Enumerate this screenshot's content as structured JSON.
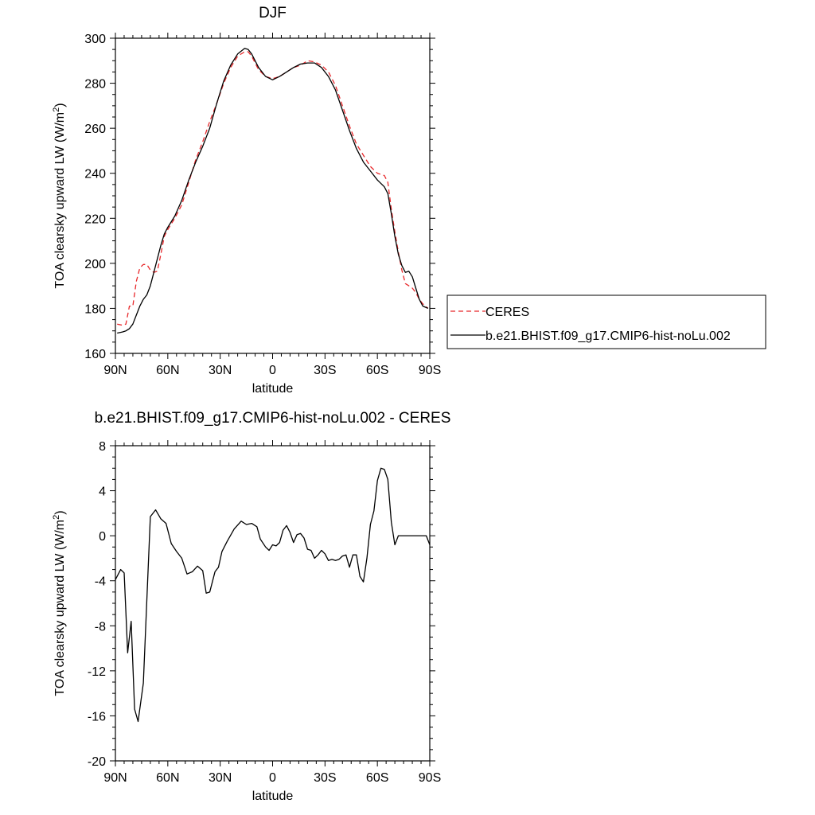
{
  "chart_data": [
    {
      "type": "line",
      "title": "DJF",
      "xlabel": "latitude",
      "ylabel": "TOA clearsky upward LW (W/m",
      "ylabel_sup": "2",
      "ylabel_close": ")",
      "xlim": [
        -90,
        90
      ],
      "ylim": [
        160,
        300
      ],
      "xticks": [
        -90,
        -60,
        -30,
        0,
        30,
        60,
        90
      ],
      "xtick_labels": [
        "90N",
        "60N",
        "30N",
        "0",
        "30S",
        "60S",
        "90S"
      ],
      "yticks": [
        160,
        180,
        200,
        220,
        240,
        260,
        280,
        300
      ],
      "ytick_labels": [
        "160",
        "180",
        "200",
        "220",
        "240",
        "260",
        "280",
        "300"
      ],
      "legend": {
        "placement": "right",
        "entries": [
          {
            "label": "CERES",
            "color": "#e8282b",
            "dash": true
          },
          {
            "label": "b.e21.BHIST.f09_g17.CMIP6-hist-noLu.002",
            "color": "#000000",
            "dash": false
          }
        ]
      },
      "series": [
        {
          "name": "CERES",
          "color": "#e8282b",
          "dash": true,
          "x": [
            -89,
            -86,
            -84,
            -82,
            -80,
            -78,
            -76,
            -74,
            -72,
            -70,
            -68,
            -66,
            -64,
            -62,
            -60,
            -56,
            -52,
            -48,
            -44,
            -40,
            -36,
            -32,
            -28,
            -24,
            -20,
            -16,
            -14,
            -12,
            -8,
            -4,
            0,
            4,
            8,
            12,
            16,
            20,
            24,
            28,
            32,
            36,
            40,
            44,
            48,
            52,
            56,
            60,
            64,
            66,
            68,
            70,
            72,
            74,
            76,
            78,
            80,
            82,
            84,
            86,
            89
          ],
          "y": [
            173,
            172.5,
            173,
            181,
            181,
            192,
            198,
            199.5,
            199.5,
            197,
            196,
            196.5,
            204,
            212,
            215,
            220,
            226,
            236,
            246,
            254,
            263,
            271,
            280,
            287,
            292,
            294,
            294,
            292,
            286,
            283,
            282,
            283,
            285,
            287,
            288,
            290,
            289.5,
            288,
            285,
            279,
            270,
            261,
            253,
            248,
            243,
            240,
            239,
            236,
            224,
            214,
            205,
            197,
            191,
            190,
            189,
            187,
            184,
            182,
            180
          ]
        },
        {
          "name": "b.e21.BHIST.f09_g17.CMIP6-hist-noLu.002",
          "color": "#000000",
          "dash": false,
          "x": [
            -89,
            -86,
            -84,
            -82,
            -80,
            -78,
            -76,
            -74,
            -72,
            -70,
            -68,
            -66,
            -64,
            -62,
            -60,
            -56,
            -52,
            -48,
            -44,
            -40,
            -36,
            -32,
            -28,
            -24,
            -20,
            -16,
            -14,
            -12,
            -8,
            -4,
            0,
            4,
            8,
            12,
            16,
            20,
            24,
            28,
            32,
            36,
            40,
            44,
            48,
            52,
            56,
            60,
            64,
            66,
            68,
            70,
            72,
            74,
            76,
            78,
            80,
            82,
            84,
            86,
            89
          ],
          "y": [
            169,
            169.5,
            170,
            171,
            173,
            177,
            181,
            184,
            186,
            190,
            196,
            202,
            208,
            213,
            216,
            221,
            228,
            237,
            245,
            252,
            260,
            271,
            281,
            288,
            293,
            295.5,
            295,
            293,
            287,
            283,
            281.5,
            283,
            285,
            287,
            288.5,
            289,
            289,
            287,
            283,
            277,
            268,
            259,
            251,
            245,
            241,
            237,
            234,
            231,
            222,
            212,
            204,
            199,
            196,
            196.5,
            194,
            189,
            184,
            181,
            180
          ]
        }
      ]
    },
    {
      "type": "line",
      "title": "b.e21.BHIST.f09_g17.CMIP6-hist-noLu.002 - CERES",
      "xlabel": "latitude",
      "ylabel": "TOA clearsky upward LW (W/m",
      "ylabel_sup": "2",
      "ylabel_close": ")",
      "xlim": [
        -90,
        90
      ],
      "ylim": [
        -20,
        8
      ],
      "xticks": [
        -90,
        -60,
        -30,
        0,
        30,
        60,
        90
      ],
      "xtick_labels": [
        "90N",
        "60N",
        "30N",
        "0",
        "30S",
        "60S",
        "90S"
      ],
      "yticks": [
        -20,
        -16,
        -12,
        -8,
        -4,
        0,
        4,
        8
      ],
      "ytick_labels": [
        "-20",
        "-16",
        "-12",
        "-8",
        "-4",
        "0",
        "4",
        "8"
      ],
      "series": [
        {
          "color": "#000000",
          "dash": false,
          "x": [
            -90,
            -87,
            -85,
            -83,
            -81,
            -79,
            -77,
            -74,
            -70,
            -67,
            -64,
            -61,
            -58,
            -55,
            -52,
            -49,
            -46,
            -43,
            -40,
            -38,
            -36,
            -33,
            -31,
            -29,
            -26,
            -22,
            -18,
            -15,
            -12,
            -9,
            -7,
            -4,
            -2,
            0,
            2,
            4,
            6,
            8,
            10,
            12,
            14,
            16,
            18,
            20,
            22,
            24,
            26,
            28,
            30,
            32,
            34,
            36,
            38,
            40,
            42,
            44,
            46,
            48,
            50,
            52,
            54,
            56,
            58,
            60,
            62,
            64,
            66,
            68,
            70,
            72,
            74,
            76,
            78,
            80,
            82,
            84,
            86,
            88,
            90
          ],
          "y": [
            -3.9,
            -3.0,
            -3.3,
            -10.4,
            -7.6,
            -15.4,
            -16.5,
            -13.1,
            1.7,
            2.3,
            1.5,
            1.1,
            -0.7,
            -1.4,
            -2.0,
            -3.4,
            -3.2,
            -2.7,
            -3.1,
            -5.1,
            -5.0,
            -3.2,
            -2.8,
            -1.4,
            -0.5,
            0.6,
            1.3,
            1.0,
            1.1,
            0.8,
            -0.3,
            -1.0,
            -1.3,
            -0.8,
            -0.9,
            -0.6,
            0.5,
            0.9,
            0.3,
            -0.6,
            0.1,
            0.2,
            -0.2,
            -1.2,
            -1.3,
            -2.0,
            -1.7,
            -1.3,
            -1.6,
            -2.2,
            -2.1,
            -2.2,
            -2.1,
            -1.8,
            -1.7,
            -2.8,
            -1.7,
            -1.7,
            -3.6,
            -4.1,
            -2.0,
            1.0,
            2.2,
            4.9,
            6.0,
            5.9,
            5.0,
            1.2,
            -0.8,
            0,
            0,
            0,
            0,
            0,
            0,
            0,
            0,
            0,
            0
          ]
        }
      ]
    }
  ]
}
